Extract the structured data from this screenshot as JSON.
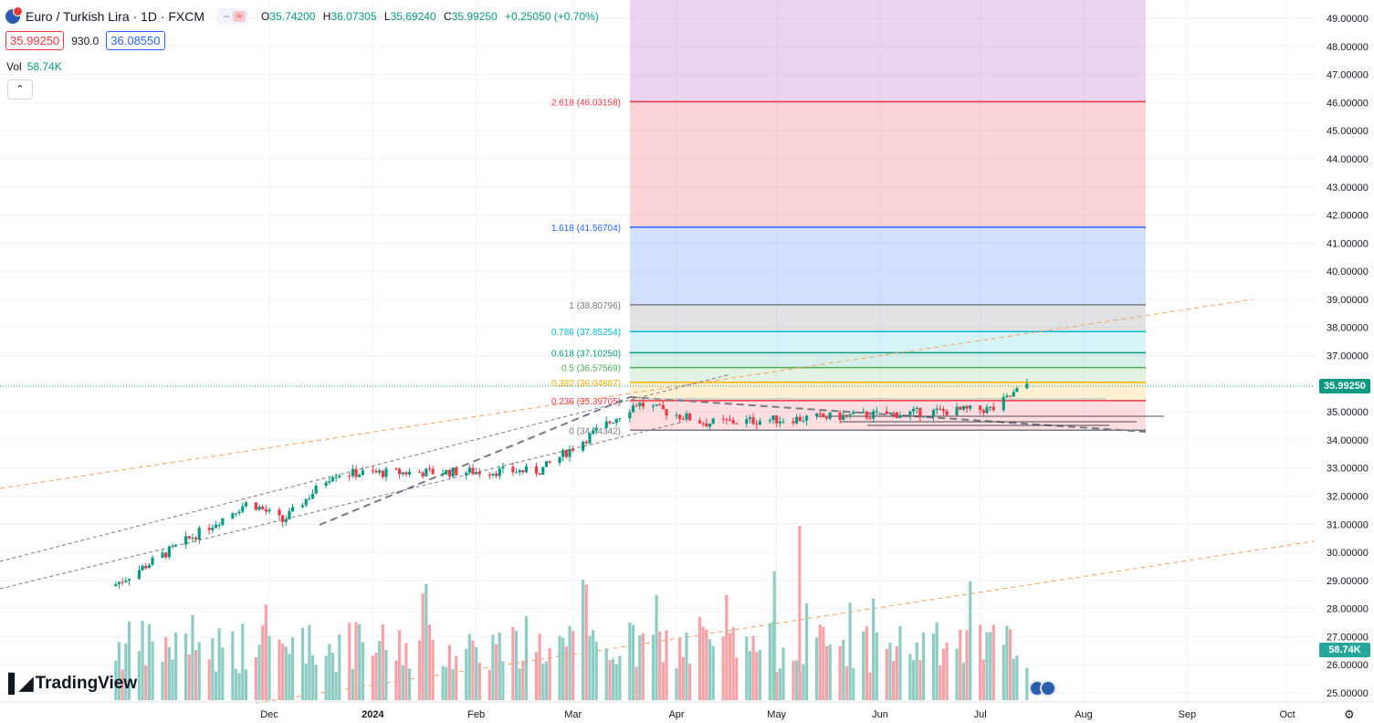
{
  "header": {
    "title": "Euro / Turkish Lira · 1D · FXCM",
    "ohlc": [
      {
        "label": "O",
        "value": "35.74200"
      },
      {
        "label": "H",
        "value": "36.07305"
      },
      {
        "label": "L",
        "value": "35.69240"
      },
      {
        "label": "C",
        "value": "35.99250"
      }
    ],
    "change": "+0.25050 (+0.70%)"
  },
  "quote": {
    "bid": "35.99250",
    "spread": "930.0",
    "ask": "36.08550"
  },
  "volume": {
    "label": "Vol",
    "value": "58.74K"
  },
  "collapse_icon": "chevron-up-icon",
  "logo_text": "TradingView",
  "last_price_label": "35.99250",
  "last_volume_label": "58.74K",
  "colors": {
    "up": "#089981",
    "down": "#f23645",
    "up_vol": "#8fcdc4",
    "down_vol": "#f5a3a8",
    "trend": "#f5a05a",
    "channel": "#787b86"
  },
  "chart_data": {
    "type": "candlestick",
    "symbol": "EURTRY",
    "interval": "1D",
    "y_axis": {
      "min": 25.0,
      "max": 49.0,
      "step": 1.0,
      "tick_format": "0.00000",
      "position": "right"
    },
    "x_axis": {
      "ticks": [
        "Dec",
        "2024",
        "Feb",
        "Mar",
        "Apr",
        "May",
        "Jun",
        "Jul",
        "Aug",
        "Sep",
        "Oct"
      ]
    },
    "fibonacci": [
      {
        "ratio": "0",
        "price": "34.34342",
        "color": "#787b86"
      },
      {
        "ratio": "0.236",
        "price": "35.39705",
        "color": "#f23645"
      },
      {
        "ratio": "0.382",
        "price": "36.04887",
        "color": "#ffb300"
      },
      {
        "ratio": "0.5",
        "price": "36.57569",
        "color": "#4caf50"
      },
      {
        "ratio": "0.618",
        "price": "37.10250",
        "color": "#089981"
      },
      {
        "ratio": "0.786",
        "price": "37.85254",
        "color": "#00bcd4"
      },
      {
        "ratio": "1",
        "price": "38.80796",
        "color": "#787b86"
      },
      {
        "ratio": "1.618",
        "price": "41.56704",
        "color": "#2962ff"
      },
      {
        "ratio": "2.618",
        "price": "46.03158",
        "color": "#f23645"
      }
    ],
    "price_segments": [
      {
        "start": "2023-10-15",
        "end": "2023-11-25",
        "from": 28.8,
        "to": 31.8
      },
      {
        "start": "2023-11-25",
        "end": "2023-12-05",
        "from": 31.8,
        "to": 31.1
      },
      {
        "start": "2023-12-05",
        "end": "2023-12-20",
        "from": 31.1,
        "to": 32.8
      },
      {
        "start": "2023-12-20",
        "end": "2024-02-20",
        "from": 32.8,
        "to": 32.9
      },
      {
        "start": "2024-02-20",
        "end": "2024-03-20",
        "from": 32.9,
        "to": 35.3
      },
      {
        "start": "2024-03-20",
        "end": "2024-04-10",
        "from": 35.3,
        "to": 34.6
      },
      {
        "start": "2024-04-10",
        "end": "2024-07-05",
        "from": 34.6,
        "to": 35.1
      },
      {
        "start": "2024-07-05",
        "end": "2024-07-15",
        "from": 35.1,
        "to": 35.99
      }
    ],
    "volume_axis": {
      "min": 0,
      "max": 100
    }
  }
}
